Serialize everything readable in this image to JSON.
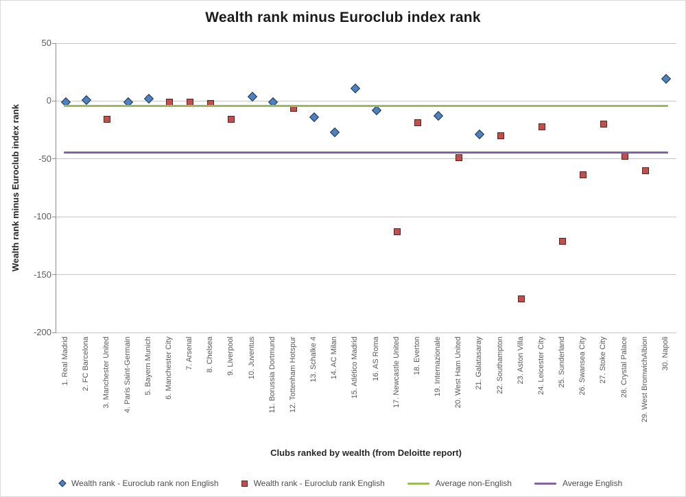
{
  "title": "Wealth rank minus Euroclub index rank",
  "chart_data": {
    "type": "scatter",
    "title": "Wealth rank minus Euroclub index rank",
    "xlabel": "Clubs ranked by wealth (from Deloitte report)",
    "ylabel": "Wealth rank minus Euroclub index rank",
    "ylim": [
      -200,
      50
    ],
    "yticks": [
      50,
      0,
      -50,
      -100,
      -150,
      -200
    ],
    "grid": true,
    "legend_position": "bottom",
    "categories": [
      "1. Real Madrid",
      "2. FC Barcelona",
      "3. Manchester United",
      "4. Paris Saint-Germain",
      "5. Bayern Munich",
      "6. Manchester City",
      "7. Arsenal",
      "8. Chelsea",
      "9. Liverpool",
      "10. Juventus",
      "11. Borussia Dortmund",
      "12. Tottenham Hotspur",
      "13. Schalke 4",
      "14. AC Milan",
      "15. Atlético Madrid",
      "16. AS Roma",
      "17. Newcastle United",
      "18. Everton",
      "19. Internazionale",
      "20. West Ham United",
      "21. Galatasaray",
      "22. Southampton",
      "23. Aston Villa",
      "24. Leicester City",
      "25. Sunderland",
      "26. Swansea City",
      "27. Stoke City",
      "28. Crystal Palace",
      "29. West BromwichAlbion",
      "30. Napoli"
    ],
    "series": [
      {
        "name": "Wealth rank - Euroclub rank non English",
        "type": "scatter",
        "marker": "diamond",
        "color": "#4f81bd",
        "values": [
          -1,
          1,
          null,
          -1,
          2,
          null,
          null,
          null,
          null,
          4,
          -1,
          null,
          -14,
          -27,
          11,
          -8,
          null,
          null,
          -13,
          null,
          -29,
          null,
          null,
          null,
          null,
          null,
          null,
          null,
          null,
          19
        ]
      },
      {
        "name": "Wealth rank - Euroclub rank English",
        "type": "scatter",
        "marker": "square",
        "color": "#c0504d",
        "values": [
          null,
          null,
          -16,
          null,
          null,
          -1,
          -1,
          -2,
          -16,
          null,
          null,
          -6,
          null,
          null,
          null,
          null,
          -113,
          -19,
          null,
          -49,
          null,
          -30,
          -171,
          -22,
          -121,
          -64,
          -20,
          -48,
          -60,
          null
        ]
      },
      {
        "name": "Average non-English",
        "type": "line",
        "color": "#9bbb59",
        "value": -4.4
      },
      {
        "name": "Average English",
        "type": "line",
        "color": "#8064a2",
        "value": -44.6
      }
    ]
  },
  "legend": {
    "items": [
      {
        "label": "Wealth rank - Euroclub rank non English",
        "marker": "diamond",
        "color": "#4f81bd"
      },
      {
        "label": "Wealth rank - Euroclub rank English",
        "marker": "square",
        "color": "#c0504d"
      },
      {
        "label": "Average non-English",
        "marker": "line",
        "color": "#9bbb59"
      },
      {
        "label": "Average English",
        "marker": "line",
        "color": "#8064a2"
      }
    ]
  },
  "colors": {
    "non_english_fill": "#4f81bd",
    "english_fill": "#c0504d",
    "avg_non_english": "#9bbb59",
    "avg_english": "#8064a2",
    "gridline": "#c6c6c6",
    "axis_text": "#595959",
    "title_text": "#1a1a1a"
  }
}
